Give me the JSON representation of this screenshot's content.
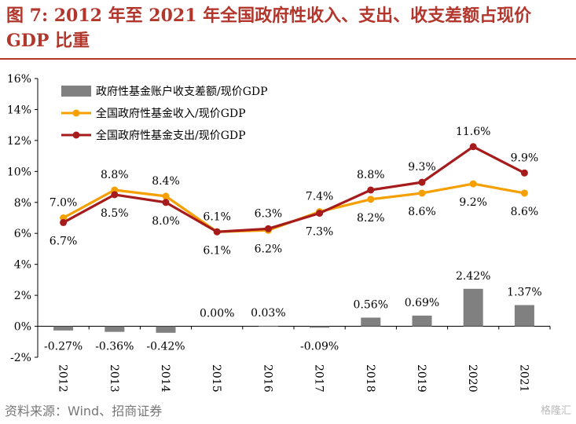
{
  "title": "图 7: 2012 年至 2021 年全国政府性收入、支出、收支差额占现价 GDP 比重",
  "source": "资料来源：Wind、招商证券",
  "watermark": "格隆汇",
  "chart_data": {
    "type": "bar+line",
    "categories": [
      "2012",
      "2013",
      "2014",
      "2015",
      "2016",
      "2017",
      "2018",
      "2019",
      "2020",
      "2021"
    ],
    "ylim": [
      -2,
      16
    ],
    "yticks": [
      "-2%",
      "0%",
      "2%",
      "4%",
      "6%",
      "8%",
      "10%",
      "12%",
      "14%",
      "16%"
    ],
    "ytick_values": [
      -2,
      0,
      2,
      4,
      6,
      8,
      10,
      12,
      14,
      16
    ],
    "legend_position": "top-left",
    "grid": false,
    "series": [
      {
        "name": "政府性基金账户收支差额/现价GDP",
        "kind": "bar",
        "color": "#808080",
        "values": [
          -0.27,
          -0.36,
          -0.42,
          0.0,
          0.03,
          -0.09,
          0.56,
          0.69,
          2.42,
          1.37
        ],
        "labels": [
          "-0.27%",
          "-0.36%",
          "-0.42%",
          "0.00%",
          "0.03%",
          "-0.09%",
          "0.56%",
          "0.69%",
          "2.42%",
          "1.37%"
        ]
      },
      {
        "name": "全国政府性基金收入/现价GDP",
        "kind": "line",
        "color": "#f5a000",
        "values": [
          7.0,
          8.8,
          8.4,
          6.1,
          6.2,
          7.4,
          8.2,
          8.6,
          9.2,
          8.6
        ],
        "labels": [
          "7.0%",
          "8.8%",
          "8.4%",
          "6.1%",
          "6.2%",
          "7.4%",
          "8.2%",
          "8.6%",
          "9.2%",
          "8.6%"
        ]
      },
      {
        "name": "全国政府性基金支出/现价GDP",
        "kind": "line",
        "color": "#a61c1c",
        "values": [
          6.7,
          8.5,
          8.0,
          6.1,
          6.3,
          7.3,
          8.8,
          9.3,
          11.6,
          9.9
        ],
        "labels": [
          "6.7%",
          "8.5%",
          "8.0%",
          "6.1%",
          "6.3%",
          "7.3%",
          "8.8%",
          "9.3%",
          "11.6%",
          "9.9%"
        ]
      }
    ]
  }
}
